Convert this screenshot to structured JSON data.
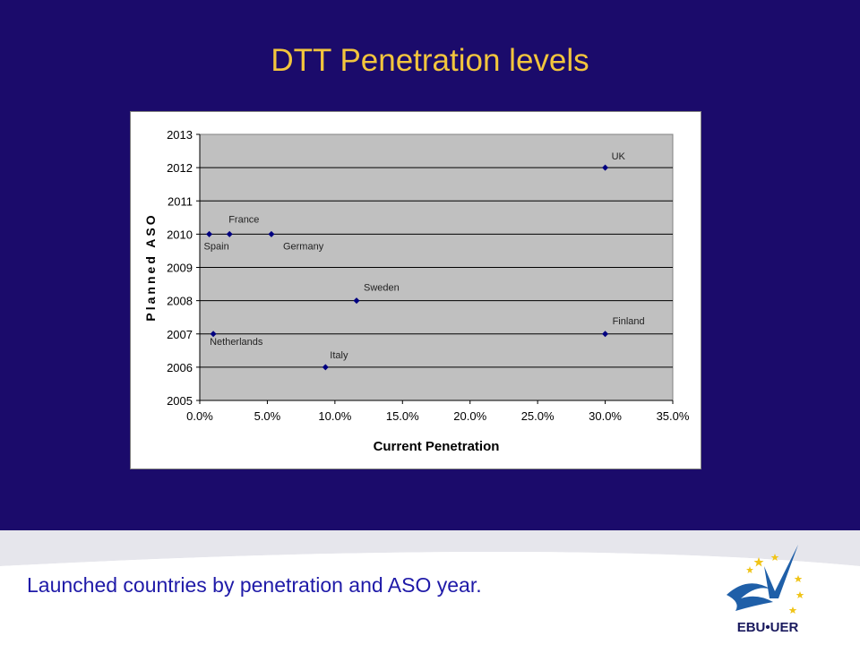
{
  "slide": {
    "title": "DTT Penetration  levels",
    "caption": "Launched countries by penetration and ASO year.",
    "logo_text": "EBU•UER"
  },
  "colors": {
    "background": "#1b0b6b",
    "title": "#f2c53d",
    "caption": "#1f1aa8",
    "plot_area": "#c0c0c0",
    "marker": "#000080"
  },
  "chart_data": {
    "type": "scatter",
    "xlabel": "Current Penetration",
    "ylabel": "Planned ASO",
    "xlim": [
      0,
      0.35
    ],
    "ylim": [
      2005,
      2013
    ],
    "x_ticks": [
      "0.0%",
      "5.0%",
      "10.0%",
      "15.0%",
      "20.0%",
      "25.0%",
      "30.0%",
      "35.0%"
    ],
    "y_ticks": [
      "2005",
      "2006",
      "2007",
      "2008",
      "2009",
      "2010",
      "2011",
      "2012",
      "2013"
    ],
    "grid": true,
    "points": [
      {
        "label": "Spain",
        "x": 0.007,
        "y": 2010
      },
      {
        "label": "France",
        "x": 0.022,
        "y": 2010
      },
      {
        "label": "Germany",
        "x": 0.053,
        "y": 2010
      },
      {
        "label": "Netherlands",
        "x": 0.01,
        "y": 2007
      },
      {
        "label": "Italy",
        "x": 0.093,
        "y": 2006
      },
      {
        "label": "Sweden",
        "x": 0.116,
        "y": 2008
      },
      {
        "label": "UK",
        "x": 0.3,
        "y": 2012
      },
      {
        "label": "Finland",
        "x": 0.3,
        "y": 2007
      }
    ]
  }
}
